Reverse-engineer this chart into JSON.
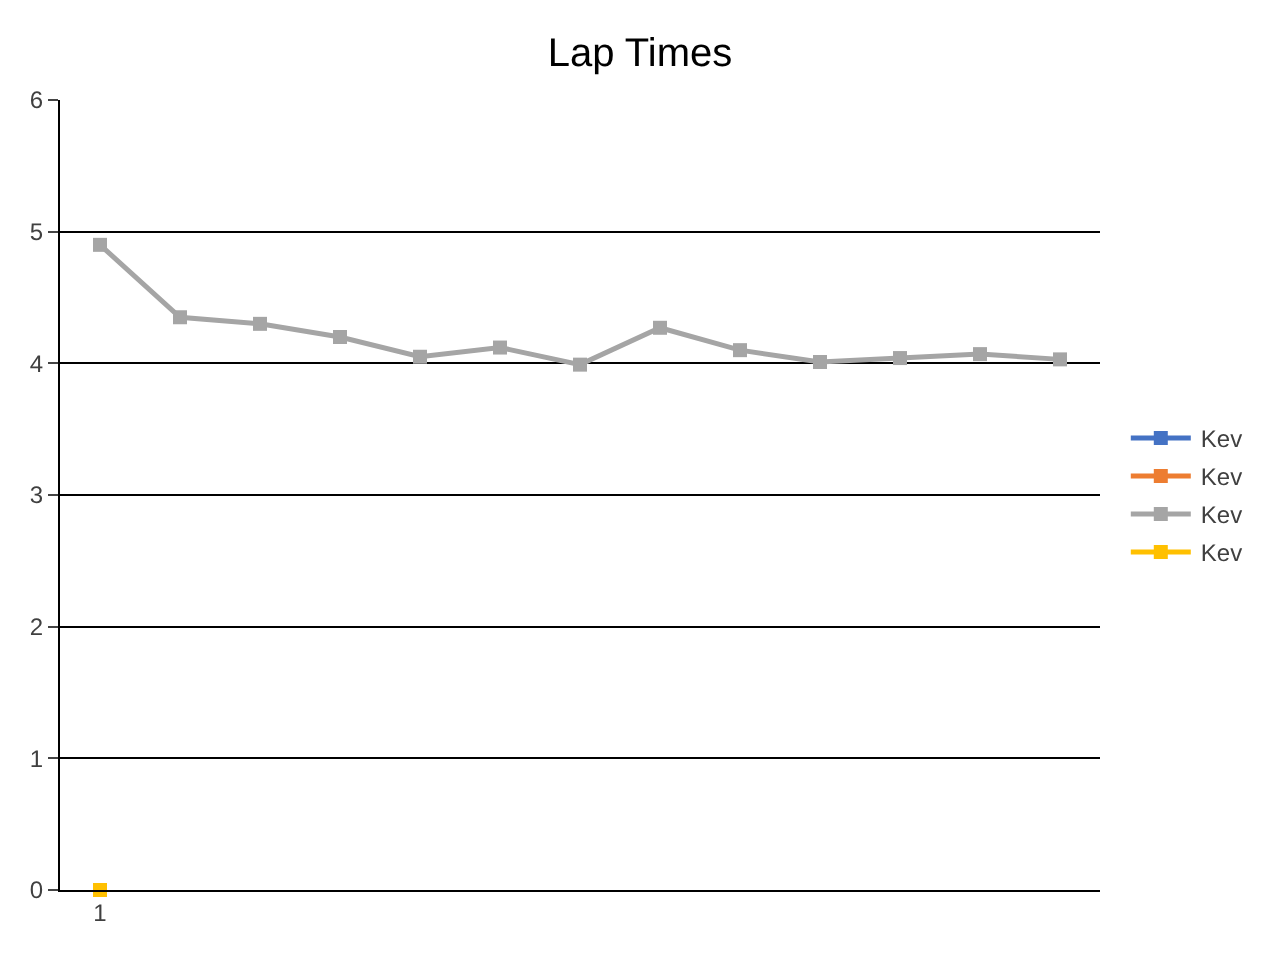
{
  "chart_data": {
    "type": "line",
    "title": "Lap Times",
    "categories": [
      "1",
      null,
      null,
      null,
      null,
      null,
      null,
      null,
      null,
      null,
      null,
      null,
      null
    ],
    "series": [
      {
        "name": "Kev",
        "color": "#4472c4",
        "values": [
          null,
          null,
          null,
          null,
          null,
          null,
          null,
          null,
          null,
          null,
          null,
          null,
          null
        ]
      },
      {
        "name": "Kev",
        "color": "#ed7d31",
        "values": [
          null,
          null,
          null,
          null,
          null,
          null,
          null,
          null,
          null,
          null,
          null,
          null,
          null
        ]
      },
      {
        "name": "Kev",
        "color": "#a5a5a5",
        "values": [
          4.9,
          4.35,
          4.3,
          4.2,
          4.05,
          4.12,
          3.99,
          4.27,
          4.1,
          4.01,
          4.04,
          4.07,
          4.03
        ]
      },
      {
        "name": "Kev",
        "color": "#ffc000",
        "values": [
          0,
          null,
          null,
          null,
          null,
          null,
          null,
          null,
          null,
          null,
          null,
          null,
          null
        ]
      }
    ],
    "ylim": [
      0,
      6
    ],
    "yticks": [
      0,
      1,
      2,
      3,
      4,
      5,
      6
    ],
    "grid": "y",
    "legend": "right",
    "marker": "square",
    "line_style": "solid"
  }
}
